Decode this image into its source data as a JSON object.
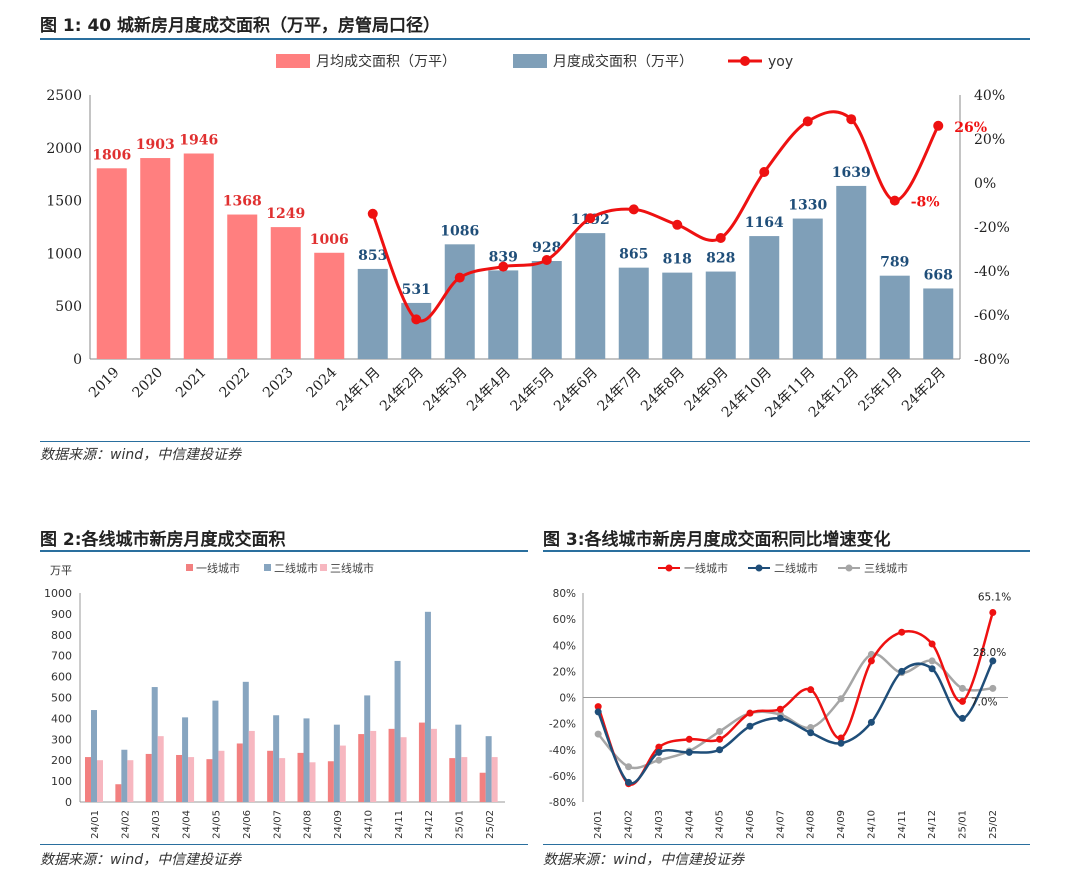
{
  "figure1": {
    "title": "图 1: 40 城新房月度成交面积（万平，房管局口径）",
    "source": "数据来源：wind，中信建投证券",
    "chart_data": {
      "type": "bar",
      "legend": [
        "月均成交面积（万平）",
        "月度成交面积（万平）",
        "yoy"
      ],
      "annual": {
        "categories": [
          "2019",
          "2020",
          "2021",
          "2022",
          "2023",
          "2024"
        ],
        "values": [
          1806,
          1903,
          1946,
          1368,
          1249,
          1006
        ]
      },
      "monthly": {
        "categories": [
          "24年1月",
          "24年2月",
          "24年3月",
          "24年4月",
          "24年5月",
          "24年6月",
          "24年7月",
          "24年8月",
          "24年9月",
          "24年10月",
          "24年11月",
          "24年12月",
          "25年1月",
          "24年2月"
        ],
        "values": [
          853,
          531,
          1086,
          839,
          928,
          1192,
          865,
          818,
          828,
          1164,
          1330,
          1639,
          789,
          668
        ],
        "yoy": [
          -0.14,
          -0.62,
          -0.43,
          -0.38,
          -0.35,
          -0.16,
          -0.12,
          -0.19,
          -0.25,
          0.05,
          0.28,
          0.29,
          -0.08,
          0.26
        ],
        "yoy_labels": {
          "12": "-8%",
          "13": "26%"
        }
      },
      "ylim_left": [
        0,
        2500
      ],
      "yticks_left": [
        "0",
        "500",
        "1000",
        "1500",
        "2000",
        "2500"
      ],
      "ylim_right": [
        -0.8,
        0.4
      ],
      "yticks_right": [
        "-80%",
        "-60%",
        "-40%",
        "-20%",
        "0%",
        "20%",
        "40%"
      ],
      "colors": {
        "annual": "#ff7f7f",
        "monthly": "#7f9fb8",
        "yoy": "#ee1111",
        "annual_label": "#e03030",
        "monthly_label": "#1f4e79"
      }
    }
  },
  "figure2": {
    "title": "图 2:各线城市新房月度成交面积",
    "source": "数据来源：wind，中信建投证券",
    "chart_data": {
      "type": "bar",
      "unit": "万平",
      "categories": [
        "24/01",
        "24/02",
        "24/03",
        "24/04",
        "24/05",
        "24/06",
        "24/07",
        "24/08",
        "24/09",
        "24/10",
        "24/11",
        "24/12",
        "25/01",
        "25/02"
      ],
      "series": [
        {
          "name": "一线城市",
          "values": [
            215,
            85,
            230,
            225,
            205,
            280,
            245,
            235,
            195,
            325,
            350,
            380,
            210,
            140
          ]
        },
        {
          "name": "二线城市",
          "values": [
            440,
            250,
            550,
            405,
            485,
            575,
            415,
            400,
            370,
            510,
            675,
            910,
            370,
            315
          ]
        },
        {
          "name": "三线城市",
          "values": [
            200,
            200,
            315,
            215,
            245,
            340,
            210,
            190,
            270,
            340,
            310,
            350,
            215,
            215
          ]
        }
      ],
      "ylim": [
        0,
        1000
      ],
      "yticks": [
        "0",
        "100",
        "200",
        "300",
        "400",
        "500",
        "600",
        "700",
        "800",
        "900",
        "1000"
      ],
      "colors": [
        "#f28080",
        "#87a5c0",
        "#f7b7c0"
      ]
    }
  },
  "figure3": {
    "title": "图 3:各线城市新房月度成交面积同比增速变化",
    "source": "数据来源：wind，中信建投证券",
    "chart_data": {
      "type": "line",
      "categories": [
        "24/01",
        "24/02",
        "24/03",
        "24/04",
        "24/05",
        "24/06",
        "24/07",
        "24/08",
        "24/09",
        "24/10",
        "24/11",
        "24/12",
        "25/01",
        "25/02"
      ],
      "series": [
        {
          "name": "一线城市",
          "values": [
            -0.07,
            -0.66,
            -0.38,
            -0.32,
            -0.32,
            -0.12,
            -0.09,
            0.06,
            -0.31,
            0.28,
            0.5,
            0.41,
            -0.03,
            0.651
          ]
        },
        {
          "name": "二线城市",
          "values": [
            -0.11,
            -0.65,
            -0.42,
            -0.42,
            -0.4,
            -0.22,
            -0.16,
            -0.27,
            -0.35,
            -0.19,
            0.2,
            0.22,
            -0.16,
            0.28
          ]
        },
        {
          "name": "三线城市",
          "values": [
            -0.28,
            -0.53,
            -0.48,
            -0.41,
            -0.26,
            -0.12,
            -0.13,
            -0.23,
            -0.01,
            0.33,
            0.19,
            0.28,
            0.07,
            0.07
          ]
        }
      ],
      "end_labels": [
        "65.1%",
        "28.0%",
        "7.0%"
      ],
      "ylim": [
        -0.8,
        0.8
      ],
      "yticks": [
        "-80%",
        "-60%",
        "-40%",
        "-20%",
        "0%",
        "20%",
        "40%",
        "60%",
        "80%"
      ],
      "colors": [
        "#ee1111",
        "#1f4e79",
        "#a6a6a6"
      ]
    }
  }
}
